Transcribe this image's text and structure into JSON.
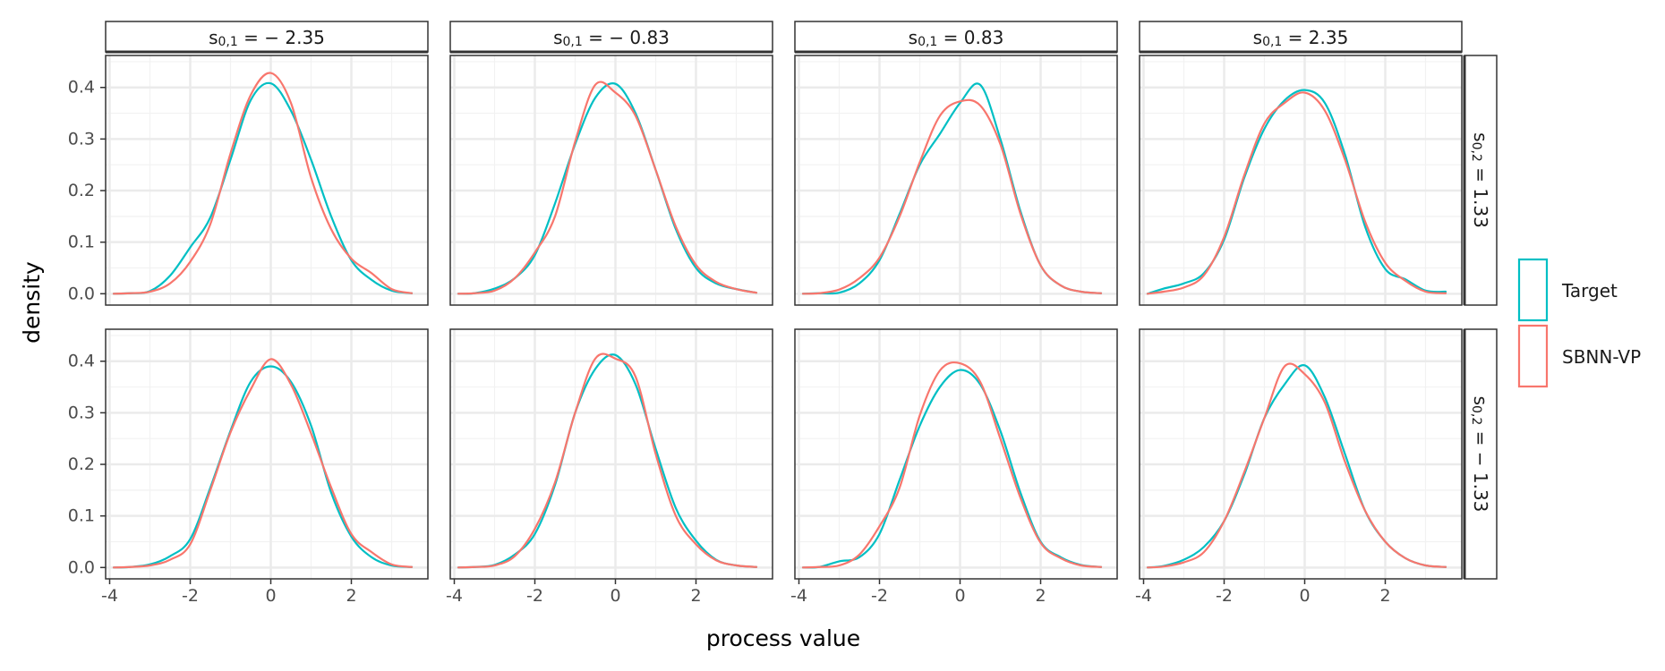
{
  "figure": {
    "xlabel": "process value",
    "ylabel": "density",
    "x_ticks": [
      -4,
      -2,
      0,
      2
    ],
    "x_tick_labels": [
      "-4",
      "-2",
      "0",
      "2"
    ],
    "y_ticks": [
      0,
      0.1,
      0.2,
      0.3,
      0.4
    ],
    "y_tick_labels": [
      "0.0",
      "0.1",
      "0.2",
      "0.3",
      "0.4"
    ],
    "xlim": [
      -4.1,
      3.9
    ],
    "ylim": [
      -0.022,
      0.462
    ],
    "col_strips": [
      "s0,1 = − 2.35",
      "s0,1 = − 0.83",
      "s0,1 = 0.83",
      "s0,1 = 2.35"
    ],
    "row_strips": [
      "s0,2 = 1.33",
      "s0,2 = − 1.33"
    ],
    "legend": [
      {
        "name": "Target",
        "color": "#00BFC4"
      },
      {
        "name": "SBNN-VP",
        "color": "#F8766D"
      }
    ]
  },
  "chart_data": {
    "type": "line",
    "title": "",
    "xlabel": "process value",
    "ylabel": "density",
    "grid": true,
    "legend_position": "right",
    "x": [
      -3.9,
      -3.5,
      -3.0,
      -2.5,
      -2.0,
      -1.5,
      -1.0,
      -0.5,
      0.0,
      0.5,
      1.0,
      1.5,
      2.0,
      2.5,
      3.0,
      3.5
    ],
    "panels": [
      {
        "row": "s0,2 = 1.33",
        "col": "s0,1 = − 2.35",
        "series": [
          {
            "name": "Target",
            "values": [
              0.0,
              0.001,
              0.005,
              0.035,
              0.09,
              0.148,
              0.26,
              0.375,
              0.408,
              0.355,
              0.26,
              0.15,
              0.065,
              0.027,
              0.006,
              0.001
            ]
          },
          {
            "name": "SBNN-VP",
            "values": [
              0.0,
              0.001,
              0.004,
              0.02,
              0.062,
              0.135,
              0.272,
              0.385,
              0.428,
              0.37,
              0.225,
              0.125,
              0.068,
              0.04,
              0.009,
              0.001
            ]
          }
        ]
      },
      {
        "row": "s0,2 = 1.33",
        "col": "s0,1 = − 0.83",
        "series": [
          {
            "name": "Target",
            "values": [
              0.0,
              0.001,
              0.01,
              0.03,
              0.075,
              0.175,
              0.29,
              0.38,
              0.407,
              0.35,
              0.24,
              0.125,
              0.05,
              0.02,
              0.009,
              0.002
            ]
          },
          {
            "name": "SBNN-VP",
            "values": [
              0.0,
              0.001,
              0.006,
              0.03,
              0.08,
              0.15,
              0.295,
              0.405,
              0.39,
              0.345,
              0.24,
              0.13,
              0.056,
              0.023,
              0.009,
              0.002
            ]
          }
        ]
      },
      {
        "row": "s0,2 = 1.33",
        "col": "s0,1 = 0.83",
        "series": [
          {
            "name": "Target",
            "values": [
              0.0,
              0.001,
              0.002,
              0.02,
              0.065,
              0.155,
              0.25,
              0.31,
              0.37,
              0.405,
              0.3,
              0.16,
              0.055,
              0.016,
              0.004,
              0.001
            ]
          },
          {
            "name": "SBNN-VP",
            "values": [
              0.0,
              0.001,
              0.008,
              0.03,
              0.07,
              0.15,
              0.255,
              0.345,
              0.373,
              0.365,
              0.29,
              0.155,
              0.055,
              0.016,
              0.004,
              0.001
            ]
          }
        ]
      },
      {
        "row": "s0,2 = 1.33",
        "col": "s0,1 = 2.35",
        "series": [
          {
            "name": "Target",
            "values": [
              0.0,
              0.01,
              0.02,
              0.04,
              0.105,
              0.225,
              0.32,
              0.375,
              0.395,
              0.37,
              0.27,
              0.13,
              0.048,
              0.028,
              0.006,
              0.004
            ]
          },
          {
            "name": "SBNN-VP",
            "values": [
              0.0,
              0.004,
              0.012,
              0.036,
              0.11,
              0.23,
              0.33,
              0.37,
              0.39,
              0.355,
              0.26,
              0.14,
              0.06,
              0.025,
              0.004,
              0.001
            ]
          }
        ]
      },
      {
        "row": "s0,2 = − 1.33",
        "col": "s0,1 = − 2.35",
        "series": [
          {
            "name": "Target",
            "values": [
              0.0,
              0.001,
              0.006,
              0.022,
              0.055,
              0.155,
              0.265,
              0.36,
              0.39,
              0.36,
              0.275,
              0.145,
              0.06,
              0.02,
              0.004,
              0.001
            ]
          },
          {
            "name": "SBNN-VP",
            "values": [
              0.0,
              0.001,
              0.004,
              0.015,
              0.045,
              0.15,
              0.262,
              0.345,
              0.404,
              0.355,
              0.26,
              0.155,
              0.065,
              0.03,
              0.006,
              0.001
            ]
          }
        ]
      },
      {
        "row": "s0,2 = − 1.33",
        "col": "s0,1 = − 0.83",
        "series": [
          {
            "name": "Target",
            "values": [
              0.0,
              0.001,
              0.005,
              0.025,
              0.065,
              0.16,
              0.3,
              0.385,
              0.412,
              0.355,
              0.23,
              0.115,
              0.052,
              0.015,
              0.004,
              0.001
            ]
          },
          {
            "name": "SBNN-VP",
            "values": [
              0.0,
              0.001,
              0.004,
              0.022,
              0.075,
              0.165,
              0.3,
              0.405,
              0.405,
              0.37,
              0.22,
              0.1,
              0.045,
              0.014,
              0.004,
              0.001
            ]
          }
        ]
      },
      {
        "row": "s0,2 = − 1.33",
        "col": "s0,1 = 0.83",
        "series": [
          {
            "name": "Target",
            "values": [
              0.0,
              0.001,
              0.012,
              0.02,
              0.065,
              0.17,
              0.275,
              0.35,
              0.383,
              0.355,
              0.265,
              0.145,
              0.05,
              0.02,
              0.005,
              0.001
            ]
          },
          {
            "name": "SBNN-VP",
            "values": [
              0.0,
              0.001,
              0.004,
              0.025,
              0.08,
              0.155,
              0.295,
              0.382,
              0.396,
              0.36,
              0.25,
              0.135,
              0.048,
              0.018,
              0.004,
              0.001
            ]
          }
        ]
      },
      {
        "row": "s0,2 = − 1.33",
        "col": "s0,1 = 2.35",
        "series": [
          {
            "name": "Target",
            "values": [
              0.0,
              0.003,
              0.015,
              0.04,
              0.09,
              0.18,
              0.29,
              0.355,
              0.392,
              0.33,
              0.22,
              0.11,
              0.05,
              0.018,
              0.004,
              0.001
            ]
          },
          {
            "name": "SBNN-VP",
            "values": [
              0.0,
              0.002,
              0.01,
              0.03,
              0.09,
              0.185,
              0.29,
              0.39,
              0.375,
              0.32,
              0.205,
              0.11,
              0.05,
              0.018,
              0.004,
              0.001
            ]
          }
        ]
      }
    ]
  }
}
